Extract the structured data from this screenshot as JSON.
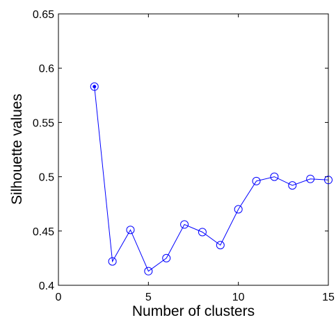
{
  "chart_data": {
    "type": "line",
    "title": "",
    "xlabel": "Number of clusters",
    "ylabel": "Silhouette values",
    "xlim": [
      0,
      15
    ],
    "ylim": [
      0.4,
      0.65
    ],
    "x_ticks": [
      0,
      5,
      10,
      15
    ],
    "x_tick_labels": [
      "0",
      "5",
      "10",
      "15"
    ],
    "y_ticks": [
      0.4,
      0.45,
      0.5,
      0.55,
      0.6,
      0.65
    ],
    "y_tick_labels": [
      "0.4",
      "0.45",
      "0.5",
      "0.55",
      "0.6",
      "0.65"
    ],
    "grid": false,
    "legend": "none",
    "series": [
      {
        "marker": "open-circle",
        "highlighted_point_index": 0,
        "color": "#0000ff",
        "x": [
          2,
          3,
          4,
          5,
          6,
          7,
          8,
          9,
          10,
          11,
          12,
          13,
          14,
          15
        ],
        "values": [
          0.583,
          0.422,
          0.451,
          0.413,
          0.425,
          0.456,
          0.449,
          0.437,
          0.47,
          0.496,
          0.5,
          0.492,
          0.498,
          0.497
        ]
      }
    ]
  }
}
